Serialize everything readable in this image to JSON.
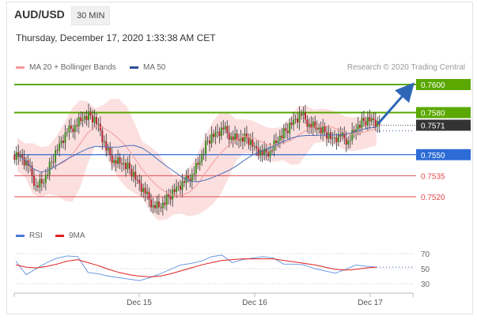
{
  "header": {
    "pair": "AUD/USD",
    "timeframe": "30 MIN",
    "datetime": "Thursday, December 17, 2020 1:33:38 AM CET"
  },
  "legend": {
    "ma20_bb": "MA 20 + Bollinger Bands",
    "ma50": "MA 50",
    "rsi": "RSI",
    "rsi_ma": "9MA",
    "credit": "Research © 2020 Trading Central"
  },
  "colors": {
    "resistance": "#5aa800",
    "support": "#e04b4b",
    "current": "#333333",
    "pivot": "#2d6bd6",
    "bollinger": "#fbd4d4",
    "ma20": "#f39a9a",
    "ma50": "#4b6fb8",
    "arrow": "#2e66b8",
    "bull": "#3d8b1e",
    "bear": "#b1252f",
    "rsi": "#5d8fe0",
    "rsi_ma": "#e02020"
  },
  "chart_data": [
    {
      "type": "candlestick",
      "title": "AUD/USD 30 MIN",
      "x_ticks": [
        "Dec 15",
        "Dec 16",
        "Dec 17"
      ],
      "ylim": [
        0.75,
        0.762
      ],
      "levels": [
        {
          "label": "0.7600",
          "value": 0.76,
          "kind": "resistance"
        },
        {
          "label": "0.7580",
          "value": 0.758,
          "kind": "resistance"
        },
        {
          "label": "0.7571",
          "value": 0.7571,
          "kind": "current"
        },
        {
          "label": "0.7550",
          "value": 0.755,
          "kind": "pivot"
        },
        {
          "label": "0.7535",
          "value": 0.7535,
          "kind": "support"
        },
        {
          "label": "0.7520",
          "value": 0.752,
          "kind": "support"
        }
      ],
      "close_series": [
        0.755,
        0.7542,
        0.7528,
        0.753,
        0.7545,
        0.7558,
        0.7566,
        0.7571,
        0.7575,
        0.7578,
        0.7572,
        0.7553,
        0.7546,
        0.7543,
        0.754,
        0.7532,
        0.7522,
        0.7514,
        0.7512,
        0.752,
        0.7527,
        0.753,
        0.7536,
        0.7545,
        0.756,
        0.7566,
        0.7568,
        0.7563,
        0.756,
        0.7562,
        0.7556,
        0.755,
        0.7553,
        0.756,
        0.7567,
        0.7575,
        0.7578,
        0.7572,
        0.7568,
        0.7566,
        0.7562,
        0.7563,
        0.756,
        0.7568,
        0.7574,
        0.7576,
        0.7571
      ],
      "projection": {
        "from": 0.7571,
        "to": 0.76
      }
    },
    {
      "type": "line",
      "title": "RSI",
      "yticks": [
        70,
        50,
        30
      ],
      "series": [
        {
          "name": "RSI",
          "values": [
            60,
            42,
            50,
            58,
            64,
            67,
            66,
            45,
            43,
            40,
            38,
            36,
            34,
            38,
            43,
            49,
            55,
            57,
            60,
            66,
            68,
            58,
            62,
            64,
            66,
            64,
            56,
            56,
            55,
            50,
            47,
            44,
            49,
            55,
            53,
            52
          ]
        },
        {
          "name": "9MA",
          "values": [
            55,
            52,
            51,
            53,
            56,
            60,
            62,
            58,
            54,
            49,
            45,
            42,
            40,
            39,
            40,
            43,
            47,
            51,
            55,
            58,
            61,
            62,
            63,
            63,
            63,
            63,
            61,
            59,
            57,
            55,
            52,
            49,
            48,
            49,
            51,
            52
          ]
        }
      ]
    }
  ]
}
